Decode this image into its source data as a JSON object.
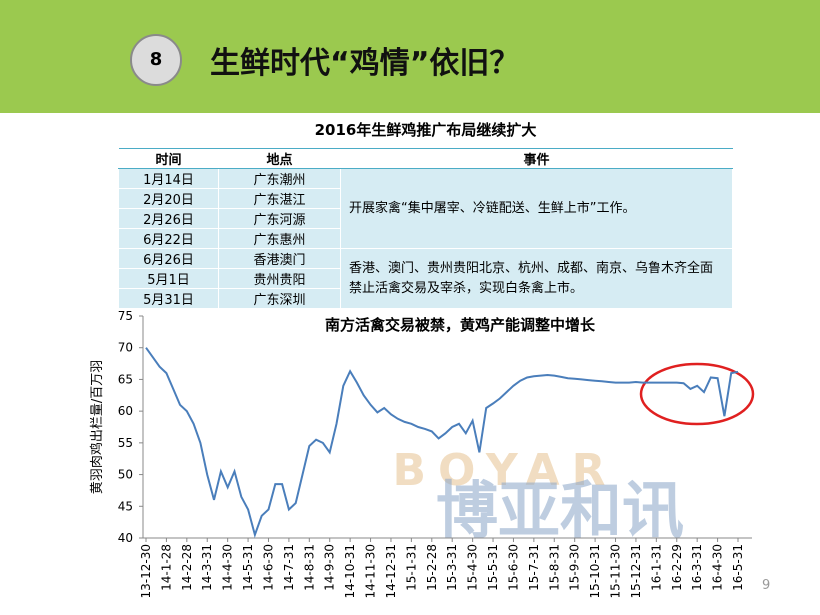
{
  "header": {
    "number": "8",
    "title": "生鲜时代“鸡情”依旧？"
  },
  "table": {
    "title": "2016年生鲜鸡推广布局继续扩大",
    "columns": [
      "时间",
      "地点",
      "事件"
    ],
    "rows": [
      [
        "1月14日",
        "广东潮州"
      ],
      [
        "2月20日",
        "广东湛江"
      ],
      [
        "2月26日",
        "广东河源"
      ],
      [
        "6月22日",
        "广东惠州"
      ],
      [
        "6月26日",
        "香港澳门"
      ],
      [
        "5月1日",
        "贵州贵阳"
      ],
      [
        "5月31日",
        "广东深圳"
      ]
    ],
    "events": [
      "开展家禽“集中屠宰、冷链配送、生鲜上市”工作。",
      "香港、澳门、贵州贵阳北京、杭州、成都、南京、乌鲁木齐全面禁止活禽交易及宰杀，实现白条禽上市。"
    ]
  },
  "chart_data": {
    "type": "line",
    "title": "南方活禽交易被禁，黄鸡产能调整中增长",
    "y_label": "黄羽肉鸡出栏量/百万羽",
    "categories": [
      "13-12-30",
      null,
      null,
      "14-1-28",
      null,
      null,
      "14-2-28",
      null,
      null,
      "14-3-31",
      null,
      null,
      "14-4-30",
      null,
      null,
      "14-5-31",
      null,
      null,
      "14-6-30",
      null,
      null,
      "14-7-31",
      null,
      null,
      "14-8-31",
      null,
      null,
      "14-9-30",
      null,
      null,
      "14-10-31",
      null,
      null,
      "14-11-30",
      null,
      null,
      "14-12-31",
      null,
      null,
      "15-1-31",
      null,
      null,
      "15-2-28",
      null,
      null,
      "15-3-31",
      null,
      null,
      "15-4-30",
      null,
      null,
      "15-5-31",
      null,
      null,
      "15-6-30",
      null,
      null,
      "15-7-31",
      null,
      null,
      "15-8-31",
      null,
      null,
      "15-9-30",
      null,
      null,
      "15-10-31",
      null,
      null,
      "15-11-30",
      null,
      null,
      "15-12-31",
      null,
      null,
      "16-1-31",
      null,
      null,
      "16-2-29",
      null,
      null,
      "16-3-31",
      null,
      null,
      "16-4-30",
      null,
      null,
      "16-5-31"
    ],
    "values": [
      70,
      68.5,
      67,
      66,
      63.5,
      61,
      60,
      58,
      55,
      50,
      46,
      50.5,
      48,
      50.5,
      46.5,
      44.5,
      40.5,
      43.5,
      44.5,
      48.5,
      48.5,
      44.5,
      45.5,
      50,
      54.5,
      55.5,
      55,
      53.5,
      58,
      64,
      66.3,
      64.5,
      62.5,
      61,
      59.8,
      60.5,
      59.5,
      58.8,
      58.3,
      58,
      57.5,
      57.2,
      56.8,
      55.7,
      56.5,
      57.5,
      58,
      56.5,
      58.5,
      53.5,
      60.5,
      61.2,
      62,
      63,
      64,
      64.8,
      65.3,
      65.5,
      65.6,
      65.7,
      65.6,
      65.4,
      65.2,
      65.1,
      65,
      64.9,
      64.8,
      64.7,
      64.6,
      64.5,
      64.5,
      64.5,
      64.6,
      64.5,
      64.5,
      64.5,
      64.5,
      64.5,
      64.5,
      64.4,
      63.5,
      64,
      63,
      65.3,
      65.2,
      59.2,
      66,
      66.2
    ],
    "color": "#4a7ebb",
    "ylim": [
      40,
      75
    ],
    "yticks": [
      40,
      45,
      50,
      55,
      60,
      65,
      70,
      75
    ],
    "grid": false,
    "watermark": [
      "BOYAR",
      "博亚和讯"
    ]
  },
  "page_number": "9"
}
